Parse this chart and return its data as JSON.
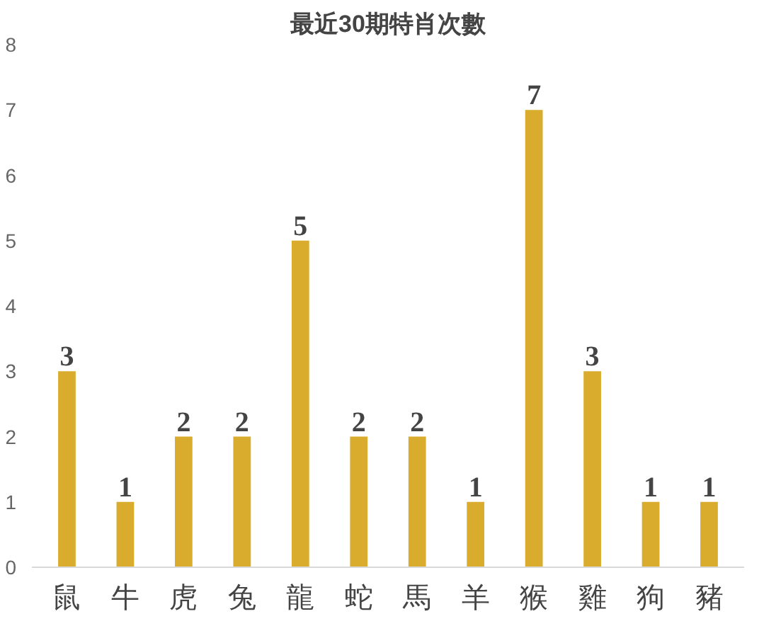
{
  "chart_data": {
    "type": "bar",
    "title": "最近30期特肖次數",
    "categories": [
      "鼠",
      "牛",
      "虎",
      "兔",
      "龍",
      "蛇",
      "馬",
      "羊",
      "猴",
      "雞",
      "狗",
      "豬"
    ],
    "values": [
      3,
      1,
      2,
      2,
      5,
      2,
      2,
      1,
      7,
      3,
      1,
      1
    ],
    "color": "#d9ac2e",
    "ylim": [
      0,
      8
    ],
    "yticks": [
      0,
      1,
      2,
      3,
      4,
      5,
      6,
      7,
      8
    ],
    "grid": false,
    "data_labels": true
  }
}
